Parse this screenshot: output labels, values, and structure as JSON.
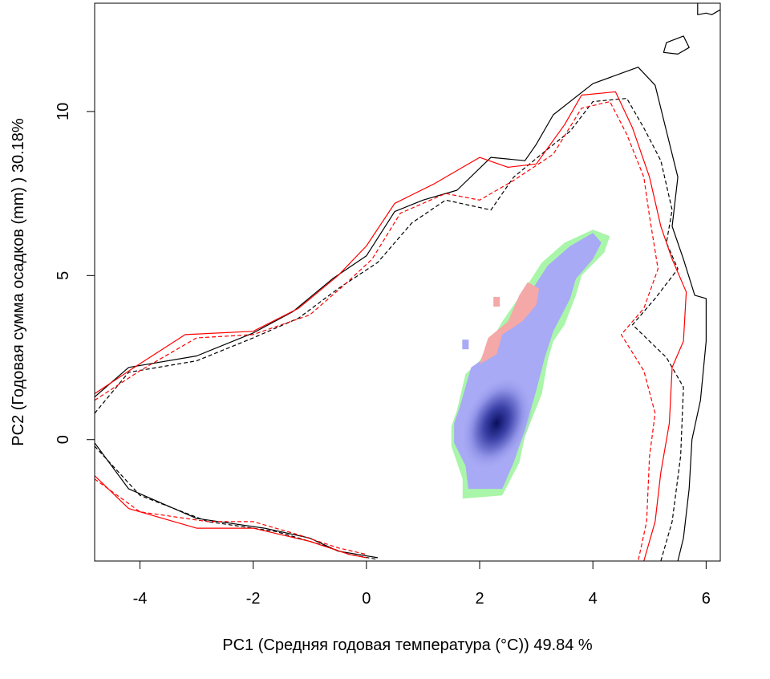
{
  "chart_data": {
    "type": "contour-density",
    "xlabel": "PC1 (Средняя годовая температура (°C)) 49.84 %",
    "ylabel": "PC2 (Годовая сумма осадков  (mm) ) 30.18%",
    "xlim": [
      -4.8,
      6.25
    ],
    "ylim": [
      -3.7,
      13.3
    ],
    "x_ticks": [
      -4,
      -2,
      0,
      2,
      4,
      6
    ],
    "y_ticks": [
      0,
      5,
      10
    ],
    "grid": false,
    "colors": {
      "env_black": "#000000",
      "env_red": "#ff0000",
      "overlap_blue": "#a8aaf5",
      "density_peak": "#0a0f60",
      "niche_green": "#a9f5a9",
      "niche_red": "#f5a8a8"
    },
    "contours": [
      {
        "color": "#000000",
        "style": "solid",
        "points": [
          [
            -4.8,
            1.3
          ],
          [
            -4.2,
            2.2
          ],
          [
            -3.0,
            2.55
          ],
          [
            -2.0,
            3.25
          ],
          [
            -1.3,
            3.9
          ],
          [
            -0.6,
            4.9
          ],
          [
            0.0,
            5.6
          ],
          [
            0.5,
            6.95
          ],
          [
            1.0,
            7.3
          ],
          [
            1.6,
            7.6
          ],
          [
            2.2,
            8.6
          ],
          [
            2.8,
            8.5
          ],
          [
            3.0,
            9.0
          ],
          [
            3.3,
            9.9
          ],
          [
            4.0,
            10.85
          ],
          [
            4.8,
            11.35
          ],
          [
            5.1,
            10.8
          ],
          [
            5.3,
            9.4
          ],
          [
            5.5,
            8.0
          ],
          [
            5.4,
            6.5
          ],
          [
            5.6,
            5.5
          ],
          [
            5.8,
            4.4
          ],
          [
            6.0,
            4.3
          ],
          [
            6.0,
            3.0
          ],
          [
            5.9,
            1.2
          ],
          [
            5.75,
            0.0
          ],
          [
            5.7,
            -1.5
          ],
          [
            5.6,
            -3.0
          ],
          [
            5.5,
            -3.7
          ]
        ]
      },
      {
        "color": "#000000",
        "style": "dashed",
        "points": [
          [
            -4.8,
            0.8
          ],
          [
            -4.2,
            2.05
          ],
          [
            -3.0,
            2.4
          ],
          [
            -2.0,
            3.1
          ],
          [
            -1.2,
            3.7
          ],
          [
            -0.5,
            4.6
          ],
          [
            0.2,
            5.4
          ],
          [
            0.8,
            6.6
          ],
          [
            1.4,
            7.3
          ],
          [
            2.2,
            7.0
          ],
          [
            2.6,
            8.0
          ],
          [
            3.2,
            8.85
          ],
          [
            3.6,
            9.4
          ],
          [
            4.0,
            10.3
          ],
          [
            4.6,
            10.4
          ],
          [
            4.9,
            9.5
          ],
          [
            5.2,
            8.5
          ],
          [
            5.4,
            7.0
          ],
          [
            5.3,
            6.0
          ],
          [
            5.5,
            5.2
          ],
          [
            5.1,
            4.3
          ],
          [
            4.7,
            3.5
          ],
          [
            5.3,
            2.5
          ],
          [
            5.6,
            1.6
          ],
          [
            5.55,
            -0.5
          ],
          [
            5.4,
            -2.5
          ],
          [
            5.2,
            -3.7
          ]
        ]
      },
      {
        "color": "#ff0000",
        "style": "solid",
        "points": [
          [
            -4.8,
            1.4
          ],
          [
            -4.1,
            2.2
          ],
          [
            -3.2,
            3.2
          ],
          [
            -2.0,
            3.3
          ],
          [
            -1.2,
            4.0
          ],
          [
            -0.5,
            5.0
          ],
          [
            0.0,
            5.9
          ],
          [
            0.5,
            7.2
          ],
          [
            1.2,
            7.8
          ],
          [
            2.0,
            8.6
          ],
          [
            2.5,
            8.3
          ],
          [
            3.0,
            8.4
          ],
          [
            3.5,
            9.6
          ],
          [
            3.8,
            10.5
          ],
          [
            4.4,
            10.6
          ],
          [
            4.7,
            9.5
          ],
          [
            5.0,
            8.0
          ],
          [
            5.2,
            6.5
          ],
          [
            5.4,
            5.5
          ],
          [
            5.65,
            4.5
          ],
          [
            5.6,
            3.0
          ],
          [
            5.4,
            2.2
          ],
          [
            5.35,
            0.5
          ],
          [
            5.2,
            -1.0
          ],
          [
            5.1,
            -2.5
          ],
          [
            4.9,
            -3.7
          ]
        ]
      },
      {
        "color": "#ff0000",
        "style": "dashed",
        "points": [
          [
            -4.8,
            1.2
          ],
          [
            -4.0,
            2.1
          ],
          [
            -3.0,
            3.1
          ],
          [
            -2.0,
            3.2
          ],
          [
            -1.0,
            3.8
          ],
          [
            -0.4,
            4.7
          ],
          [
            0.1,
            5.5
          ],
          [
            0.6,
            6.9
          ],
          [
            1.4,
            7.5
          ],
          [
            2.0,
            7.3
          ],
          [
            2.6,
            7.9
          ],
          [
            3.3,
            8.7
          ],
          [
            3.8,
            10.1
          ],
          [
            4.3,
            10.3
          ],
          [
            4.6,
            9.3
          ],
          [
            4.9,
            8.0
          ],
          [
            5.0,
            6.8
          ],
          [
            5.15,
            5.2
          ],
          [
            4.9,
            4.0
          ],
          [
            4.5,
            3.2
          ],
          [
            4.9,
            2.1
          ],
          [
            5.1,
            0.8
          ],
          [
            5.0,
            -0.5
          ],
          [
            4.95,
            -2.5
          ],
          [
            4.8,
            -3.7
          ]
        ]
      },
      {
        "color": "#000000",
        "style": "solid",
        "points": [
          [
            -4.8,
            -0.1
          ],
          [
            -4.2,
            -1.5
          ],
          [
            -3.0,
            -2.4
          ],
          [
            -1.8,
            -2.7
          ],
          [
            -1.0,
            -3.0
          ],
          [
            -0.5,
            -3.4
          ],
          [
            0.2,
            -3.6
          ]
        ]
      },
      {
        "color": "#000000",
        "style": "dashed",
        "points": [
          [
            -4.8,
            -0.2
          ],
          [
            -4.0,
            -1.7
          ],
          [
            -2.8,
            -2.5
          ],
          [
            -1.6,
            -2.8
          ],
          [
            -0.8,
            -3.2
          ],
          [
            -0.3,
            -3.5
          ],
          [
            0.2,
            -3.65
          ]
        ]
      },
      {
        "color": "#ff0000",
        "style": "solid",
        "points": [
          [
            -4.8,
            -1.1
          ],
          [
            -4.2,
            -2.1
          ],
          [
            -3.0,
            -2.7
          ],
          [
            -2.0,
            -2.7
          ],
          [
            -1.0,
            -3.1
          ],
          [
            -0.3,
            -3.5
          ],
          [
            0.0,
            -3.6
          ]
        ]
      },
      {
        "color": "#ff0000",
        "style": "dashed",
        "points": [
          [
            -4.8,
            -1.2
          ],
          [
            -4.0,
            -2.2
          ],
          [
            -2.8,
            -2.5
          ],
          [
            -2.0,
            -2.5
          ],
          [
            -1.2,
            -2.9
          ],
          [
            -0.5,
            -3.3
          ],
          [
            0.0,
            -3.5
          ]
        ]
      },
      {
        "color": "#000000",
        "style": "solid",
        "closed": true,
        "points": [
          [
            5.3,
            12.1
          ],
          [
            5.6,
            12.3
          ],
          [
            5.7,
            11.95
          ],
          [
            5.5,
            11.75
          ],
          [
            5.25,
            11.8
          ]
        ]
      },
      {
        "color": "#000000",
        "style": "solid",
        "points": [
          [
            5.85,
            13.3
          ],
          [
            5.85,
            12.95
          ],
          [
            6.0,
            13.0
          ],
          [
            6.1,
            12.95
          ],
          [
            6.25,
            13.1
          ]
        ]
      }
    ],
    "density_regions": {
      "green_band": [
        [
          1.6,
          0.9
        ],
        [
          1.75,
          2.0
        ],
        [
          2.0,
          2.4
        ],
        [
          2.4,
          3.6
        ],
        [
          2.8,
          4.6
        ],
        [
          3.1,
          5.4
        ],
        [
          3.5,
          6.0
        ],
        [
          4.0,
          6.4
        ],
        [
          4.3,
          6.2
        ],
        [
          4.2,
          5.7
        ],
        [
          3.8,
          5.0
        ],
        [
          3.7,
          4.4
        ],
        [
          3.5,
          3.5
        ],
        [
          3.3,
          3.0
        ],
        [
          3.2,
          2.4
        ],
        [
          3.1,
          1.4
        ],
        [
          2.8,
          0.1
        ],
        [
          2.7,
          -0.7
        ],
        [
          2.4,
          -1.7
        ],
        [
          1.7,
          -1.8
        ],
        [
          1.7,
          -1.2
        ],
        [
          1.5,
          -0.2
        ],
        [
          1.5,
          0.4
        ]
      ],
      "blue_band": [
        [
          1.65,
          1.0
        ],
        [
          1.85,
          2.2
        ],
        [
          2.1,
          2.5
        ],
        [
          2.5,
          3.5
        ],
        [
          2.9,
          4.5
        ],
        [
          3.2,
          5.3
        ],
        [
          3.6,
          5.9
        ],
        [
          4.0,
          6.3
        ],
        [
          4.15,
          6.0
        ],
        [
          4.0,
          5.5
        ],
        [
          3.7,
          4.9
        ],
        [
          3.6,
          4.3
        ],
        [
          3.3,
          3.3
        ],
        [
          3.15,
          2.5
        ],
        [
          3.0,
          1.5
        ],
        [
          2.8,
          0.3
        ],
        [
          2.6,
          -0.7
        ],
        [
          2.4,
          -1.5
        ],
        [
          1.8,
          -1.5
        ],
        [
          1.75,
          -0.8
        ],
        [
          1.55,
          -0.1
        ],
        [
          1.55,
          0.5
        ]
      ],
      "red_patch": [
        [
          2.0,
          2.3
        ],
        [
          2.15,
          3.1
        ],
        [
          2.5,
          3.6
        ],
        [
          2.7,
          4.4
        ],
        [
          2.85,
          4.8
        ],
        [
          3.05,
          4.6
        ],
        [
          3.0,
          4.1
        ],
        [
          2.75,
          3.6
        ],
        [
          2.4,
          3.2
        ],
        [
          2.3,
          2.6
        ]
      ],
      "peak": {
        "x": 2.3,
        "y": 0.5
      },
      "isolated_points": [
        {
          "x": 1.75,
          "y": 2.9,
          "color": "#a8aaf5"
        },
        {
          "x": 2.3,
          "y": 4.2,
          "color": "#f5a8a8"
        }
      ]
    }
  }
}
